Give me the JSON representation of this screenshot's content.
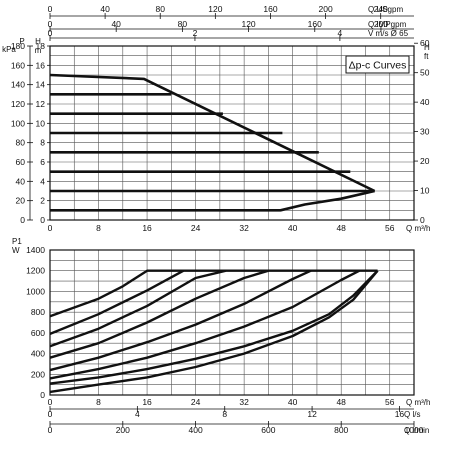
{
  "chart_data": [
    {
      "type": "line",
      "panel": "dp-c curves (pressure/head vs flow)",
      "legend": "Δp-c Curves",
      "x": {
        "unit_label": "Q m³/h",
        "range": [
          0,
          60
        ],
        "ticks": [
          0,
          8,
          16,
          24,
          32,
          40,
          48,
          56
        ]
      },
      "y_left": {
        "pressure_axis": {
          "unit_lines": [
            "P",
            "kPa"
          ],
          "range": [
            0,
            180
          ],
          "ticks": [
            0,
            20,
            40,
            60,
            80,
            100,
            120,
            140,
            160,
            180
          ]
        },
        "head_axis": {
          "unit_lines": [
            "H",
            "m"
          ],
          "range": [
            0,
            18
          ],
          "ticks": [
            0,
            2,
            4,
            6,
            8,
            10,
            12,
            14,
            16,
            18
          ]
        }
      },
      "y_right": {
        "unit_lines": [
          "H",
          "ft"
        ],
        "range": [
          0,
          60
        ],
        "ticks": [
          0,
          10,
          20,
          30,
          40,
          50,
          60
        ]
      },
      "top_axes": [
        {
          "unit_label": "Q USgpm",
          "ticks": [
            0,
            40,
            80,
            120,
            160,
            200,
            240
          ]
        },
        {
          "unit_label": "Q IMPgpm",
          "ticks": [
            0,
            40,
            80,
            120,
            160,
            200
          ]
        },
        {
          "unit_label": "V m/s Ø 65",
          "ticks": [
            0,
            2,
            4,
            6,
            8
          ]
        }
      ],
      "series": [
        {
          "level_m": 1.0,
          "values": [
            [
              0,
              1.0
            ],
            [
              38,
              1.0
            ],
            [
              42,
              1.6
            ],
            [
              48,
              2.2
            ],
            [
              53.5,
              3.0
            ]
          ]
        },
        {
          "level_m": 3.0,
          "values": [
            [
              0,
              3.0
            ],
            [
              53.5,
              3.0
            ]
          ]
        },
        {
          "level_m": 5.0,
          "values": [
            [
              0,
              5.0
            ],
            [
              49.5,
              5.0
            ]
          ]
        },
        {
          "level_m": 7.0,
          "values": [
            [
              0,
              7.0
            ],
            [
              44.3,
              7.0
            ]
          ]
        },
        {
          "level_m": 9.0,
          "values": [
            [
              0,
              9.0
            ],
            [
              38.3,
              9.0
            ]
          ]
        },
        {
          "level_m": 11.0,
          "values": [
            [
              0,
              11.0
            ],
            [
              28.5,
              11.0
            ]
          ]
        },
        {
          "level_m": 13.0,
          "values": [
            [
              0,
              13.0
            ],
            [
              20.0,
              13.0
            ]
          ]
        },
        {
          "level_m": 15.0,
          "values": [
            [
              0,
              15.0
            ],
            [
              15.5,
              14.6
            ],
            [
              53.5,
              3.0
            ]
          ]
        }
      ]
    },
    {
      "type": "line",
      "panel": "power input vs flow",
      "x": {
        "unit_label": "Q m³/h",
        "range": [
          0,
          60
        ],
        "ticks": [
          0,
          8,
          16,
          24,
          32,
          40,
          48,
          56
        ]
      },
      "y": {
        "unit_lines": [
          "P1",
          "W"
        ],
        "range": [
          0,
          1400
        ],
        "ticks": [
          0,
          200,
          400,
          600,
          800,
          1000,
          1200,
          1400
        ]
      },
      "bottom_axes": [
        {
          "unit_label": "Q l/s",
          "ticks": [
            0,
            4,
            8,
            12,
            16
          ]
        },
        {
          "unit_label": "Q l/min",
          "ticks": [
            0,
            200,
            400,
            600,
            800,
            1000
          ]
        }
      ],
      "max_power_w": 1200,
      "series": [
        {
          "values": [
            [
              0,
              760
            ],
            [
              8,
              930
            ],
            [
              12,
              1050
            ],
            [
              16,
              1200
            ],
            [
              54,
              1200
            ]
          ]
        },
        {
          "values": [
            [
              0,
              590
            ],
            [
              8,
              780
            ],
            [
              16,
              1010
            ],
            [
              22,
              1200
            ]
          ]
        },
        {
          "values": [
            [
              0,
              470
            ],
            [
              8,
              640
            ],
            [
              16,
              860
            ],
            [
              24,
              1130
            ],
            [
              29,
              1200
            ]
          ]
        },
        {
          "values": [
            [
              0,
              360
            ],
            [
              8,
              500
            ],
            [
              16,
              700
            ],
            [
              24,
              930
            ],
            [
              32,
              1130
            ],
            [
              36,
              1200
            ]
          ]
        },
        {
          "values": [
            [
              0,
              240
            ],
            [
              8,
              360
            ],
            [
              16,
              510
            ],
            [
              24,
              680
            ],
            [
              32,
              880
            ],
            [
              40,
              1120
            ],
            [
              43,
              1200
            ]
          ]
        },
        {
          "values": [
            [
              0,
              160
            ],
            [
              8,
              250
            ],
            [
              16,
              360
            ],
            [
              24,
              500
            ],
            [
              32,
              660
            ],
            [
              40,
              850
            ],
            [
              48,
              1110
            ],
            [
              51,
              1200
            ]
          ]
        },
        {
          "values": [
            [
              0,
              110
            ],
            [
              8,
              170
            ],
            [
              16,
              250
            ],
            [
              24,
              350
            ],
            [
              32,
              470
            ],
            [
              40,
              620
            ],
            [
              46,
              780
            ],
            [
              50,
              960
            ],
            [
              54,
              1200
            ]
          ]
        },
        {
          "values": [
            [
              0,
              30
            ],
            [
              8,
              100
            ],
            [
              16,
              170
            ],
            [
              24,
              270
            ],
            [
              32,
              400
            ],
            [
              40,
              570
            ],
            [
              46,
              750
            ],
            [
              50,
              920
            ],
            [
              54,
              1200
            ]
          ]
        }
      ]
    }
  ]
}
